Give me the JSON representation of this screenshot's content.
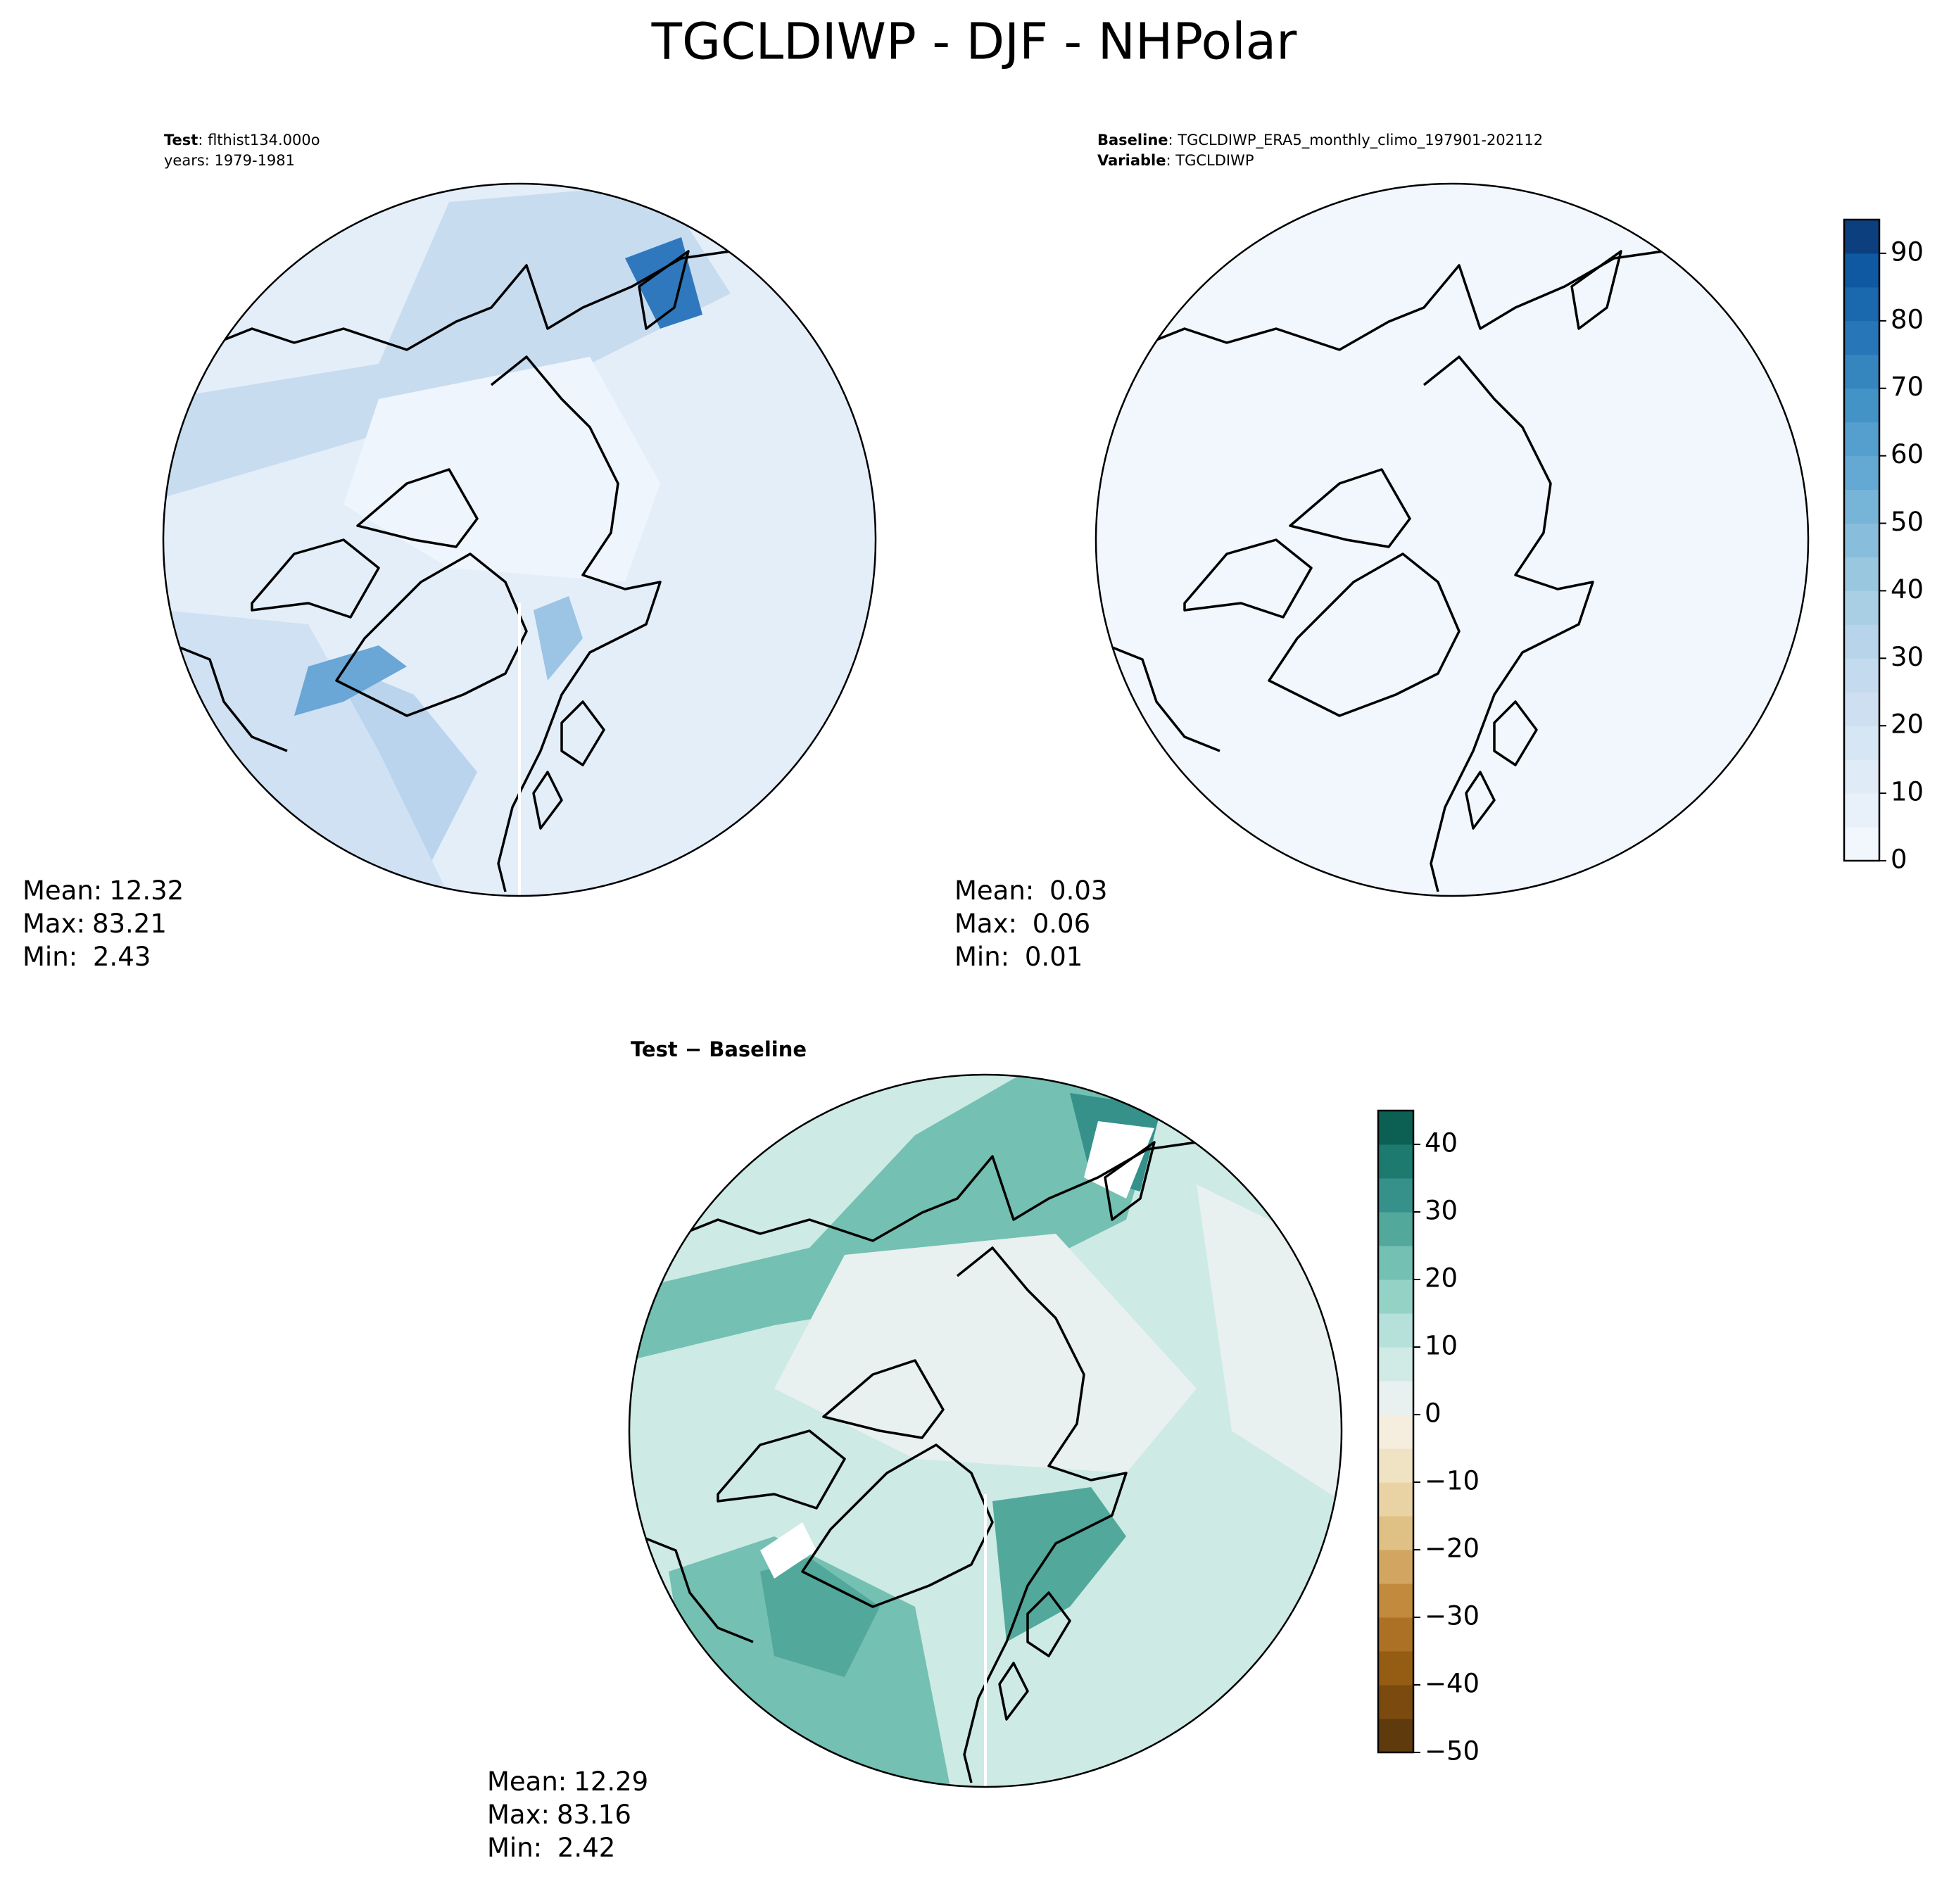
{
  "title": "TGCLDIWP - DJF - NHPolar",
  "panels": [
    {
      "lines": [
        {
          "label": "Test",
          "text": ": flthist134.000o"
        },
        {
          "label": "",
          "text": "years: 1979-1981"
        }
      ],
      "stats": [
        {
          "label": "Mean:",
          "value": "12.32"
        },
        {
          "label": "Max:",
          "value": "83.21"
        },
        {
          "label": "Min:",
          "value": " 2.43"
        }
      ]
    },
    {
      "lines": [
        {
          "label": "Baseline",
          "text": ": TGCLDIWP_ERA5_monthly_climo_197901-202112"
        },
        {
          "label": "Variable",
          "text": ": TGCLDIWP"
        }
      ],
      "stats": [
        {
          "label": "Mean:",
          "value": " 0.03"
        },
        {
          "label": "Max:",
          "value": " 0.06"
        },
        {
          "label": "Min:",
          "value": " 0.01"
        }
      ]
    },
    {
      "heading": "Test − Baseline",
      "stats": [
        {
          "label": "Mean:",
          "value": "12.29"
        },
        {
          "label": "Max:",
          "value": "83.16"
        },
        {
          "label": "Min:",
          "value": " 2.42"
        }
      ]
    }
  ],
  "colorbars": [
    {
      "ylim": [
        0,
        95
      ],
      "yticks": [
        0,
        10,
        20,
        30,
        40,
        50,
        60,
        70,
        80,
        90
      ],
      "colors": [
        "#f1f7fd",
        "#e8f1fa",
        "#dfebf7",
        "#d6e6f4",
        "#cddff1",
        "#c4daee",
        "#b7d4ea",
        "#a9cfe5",
        "#99c7e0",
        "#88bedc",
        "#76b4d8",
        "#64a9d3",
        "#549fcd",
        "#4493c7",
        "#3585bf",
        "#2777b8",
        "#1a68ae",
        "#0e59a2",
        "#0b3f7e"
      ]
    },
    {
      "ylim": [
        -50,
        45
      ],
      "yticks": [
        {
          "value": -50,
          "label": "−50"
        },
        {
          "value": -40,
          "label": "−40"
        },
        {
          "value": -30,
          "label": "−30"
        },
        {
          "value": -20,
          "label": "−20"
        },
        {
          "value": -10,
          "label": "−10"
        },
        0,
        10,
        20,
        30,
        40
      ],
      "colors": [
        "#5e3a0c",
        "#7a4a0f",
        "#955c14",
        "#ad7126",
        "#c28a3c",
        "#d2a660",
        "#dfc085",
        "#e9d3a4",
        "#f0e3c4",
        "#f5eedf",
        "#e8f1f0",
        "#d0ebe6",
        "#b5e1da",
        "#94d2c6",
        "#74c0b2",
        "#52a89a",
        "#35918a",
        "#1d7a6f",
        "#0c5f53"
      ]
    }
  ]
}
